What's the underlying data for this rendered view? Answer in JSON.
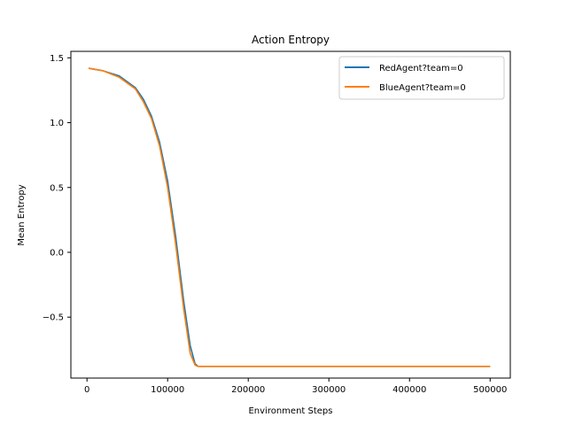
{
  "chart_data": {
    "type": "line",
    "title": "Action Entropy",
    "xlabel": "Environment Steps",
    "ylabel": "Mean Entropy",
    "xlim": [
      -20000,
      525000
    ],
    "ylim": [
      -0.97,
      1.55
    ],
    "xticks": [
      0,
      100000,
      200000,
      300000,
      400000,
      500000
    ],
    "xtick_labels": [
      "0",
      "100000",
      "200000",
      "300000",
      "400000",
      "500000"
    ],
    "yticks": [
      -0.5,
      0.0,
      0.5,
      1.0,
      1.5
    ],
    "ytick_labels": [
      "−0.5",
      "0.0",
      "0.5",
      "1.0",
      "1.5"
    ],
    "grid": false,
    "legend_position": "top-right",
    "series": [
      {
        "name": "RedAgent?team=0",
        "color": "#1f77b4",
        "x": [
          2000,
          20000,
          40000,
          60000,
          70000,
          80000,
          90000,
          100000,
          110000,
          120000,
          128000,
          134000,
          138000,
          145000,
          200000,
          300000,
          400000,
          500000
        ],
        "y": [
          1.42,
          1.4,
          1.36,
          1.27,
          1.18,
          1.05,
          0.85,
          0.55,
          0.12,
          -0.38,
          -0.72,
          -0.86,
          -0.88,
          -0.88,
          -0.88,
          -0.88,
          -0.88,
          -0.88
        ]
      },
      {
        "name": "BlueAgent?team=0",
        "color": "#ff7f0e",
        "x": [
          2000,
          20000,
          40000,
          60000,
          70000,
          80000,
          90000,
          100000,
          110000,
          120000,
          128000,
          134000,
          138000,
          145000,
          200000,
          300000,
          400000,
          500000
        ],
        "y": [
          1.42,
          1.4,
          1.35,
          1.26,
          1.16,
          1.03,
          0.82,
          0.5,
          0.06,
          -0.44,
          -0.78,
          -0.87,
          -0.88,
          -0.88,
          -0.88,
          -0.88,
          -0.88,
          -0.88
        ]
      }
    ]
  }
}
